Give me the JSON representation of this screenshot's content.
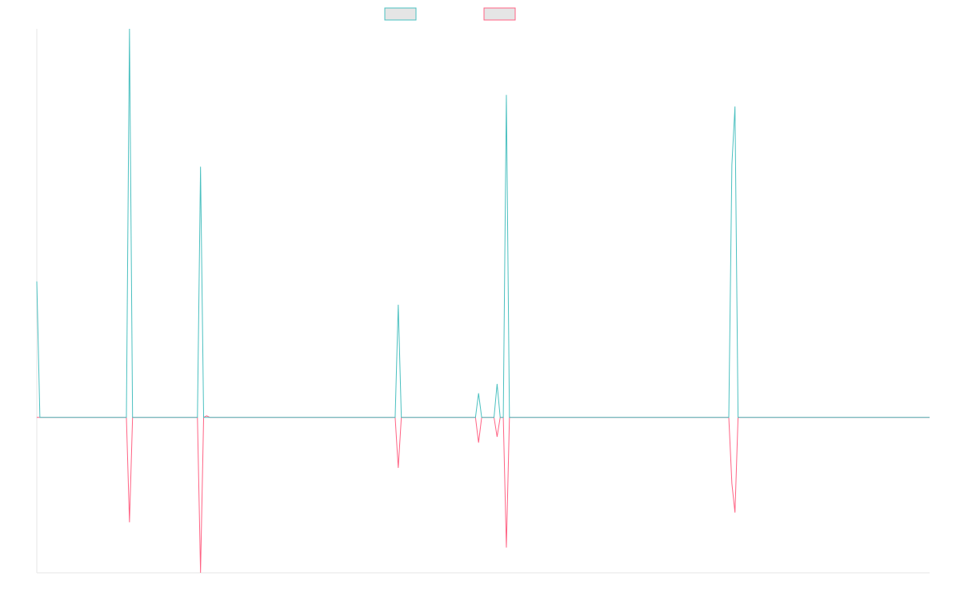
{
  "chart_data": {
    "type": "line",
    "title": "",
    "xlabel": "",
    "ylabel": "",
    "grid": false,
    "legend": "top-center",
    "x_count": 290,
    "ylim": [
      -0.4,
      1.0
    ],
    "series": [
      {
        "color": "#4bc0c0",
        "fill": "#e5e5e5",
        "points": [
          [
            0,
            0.35
          ],
          [
            1,
            0
          ],
          [
            29,
            0
          ],
          [
            30,
            1.0
          ],
          [
            31,
            0
          ],
          [
            52,
            0
          ],
          [
            53,
            0.645
          ],
          [
            54,
            0
          ],
          [
            116,
            0
          ],
          [
            117,
            0.29
          ],
          [
            118,
            0
          ],
          [
            142,
            0
          ],
          [
            143,
            0.062
          ],
          [
            144,
            0
          ],
          [
            148,
            0
          ],
          [
            149,
            0.086
          ],
          [
            150,
            0
          ],
          [
            151,
            0
          ],
          [
            152,
            0.83
          ],
          [
            153,
            0
          ],
          [
            224,
            0
          ],
          [
            225,
            0.65
          ],
          [
            226,
            0.8
          ],
          [
            227,
            0
          ],
          [
            289,
            0
          ]
        ]
      },
      {
        "color": "#ff6384",
        "fill": "#e5e5e5",
        "points": [
          [
            0,
            0
          ],
          [
            29,
            0
          ],
          [
            30,
            -0.27
          ],
          [
            31,
            0
          ],
          [
            52,
            0
          ],
          [
            53,
            -0.4
          ],
          [
            54,
            0
          ],
          [
            55,
            0.004
          ],
          [
            56,
            0
          ],
          [
            116,
            0
          ],
          [
            117,
            -0.13
          ],
          [
            118,
            0
          ],
          [
            142,
            0
          ],
          [
            143,
            -0.065
          ],
          [
            144,
            0
          ],
          [
            148,
            0
          ],
          [
            149,
            -0.05
          ],
          [
            150,
            0
          ],
          [
            151,
            0
          ],
          [
            152,
            -0.335
          ],
          [
            153,
            0
          ],
          [
            224,
            0
          ],
          [
            225,
            -0.17
          ],
          [
            226,
            -0.245
          ],
          [
            227,
            0
          ],
          [
            289,
            0
          ]
        ]
      }
    ]
  }
}
